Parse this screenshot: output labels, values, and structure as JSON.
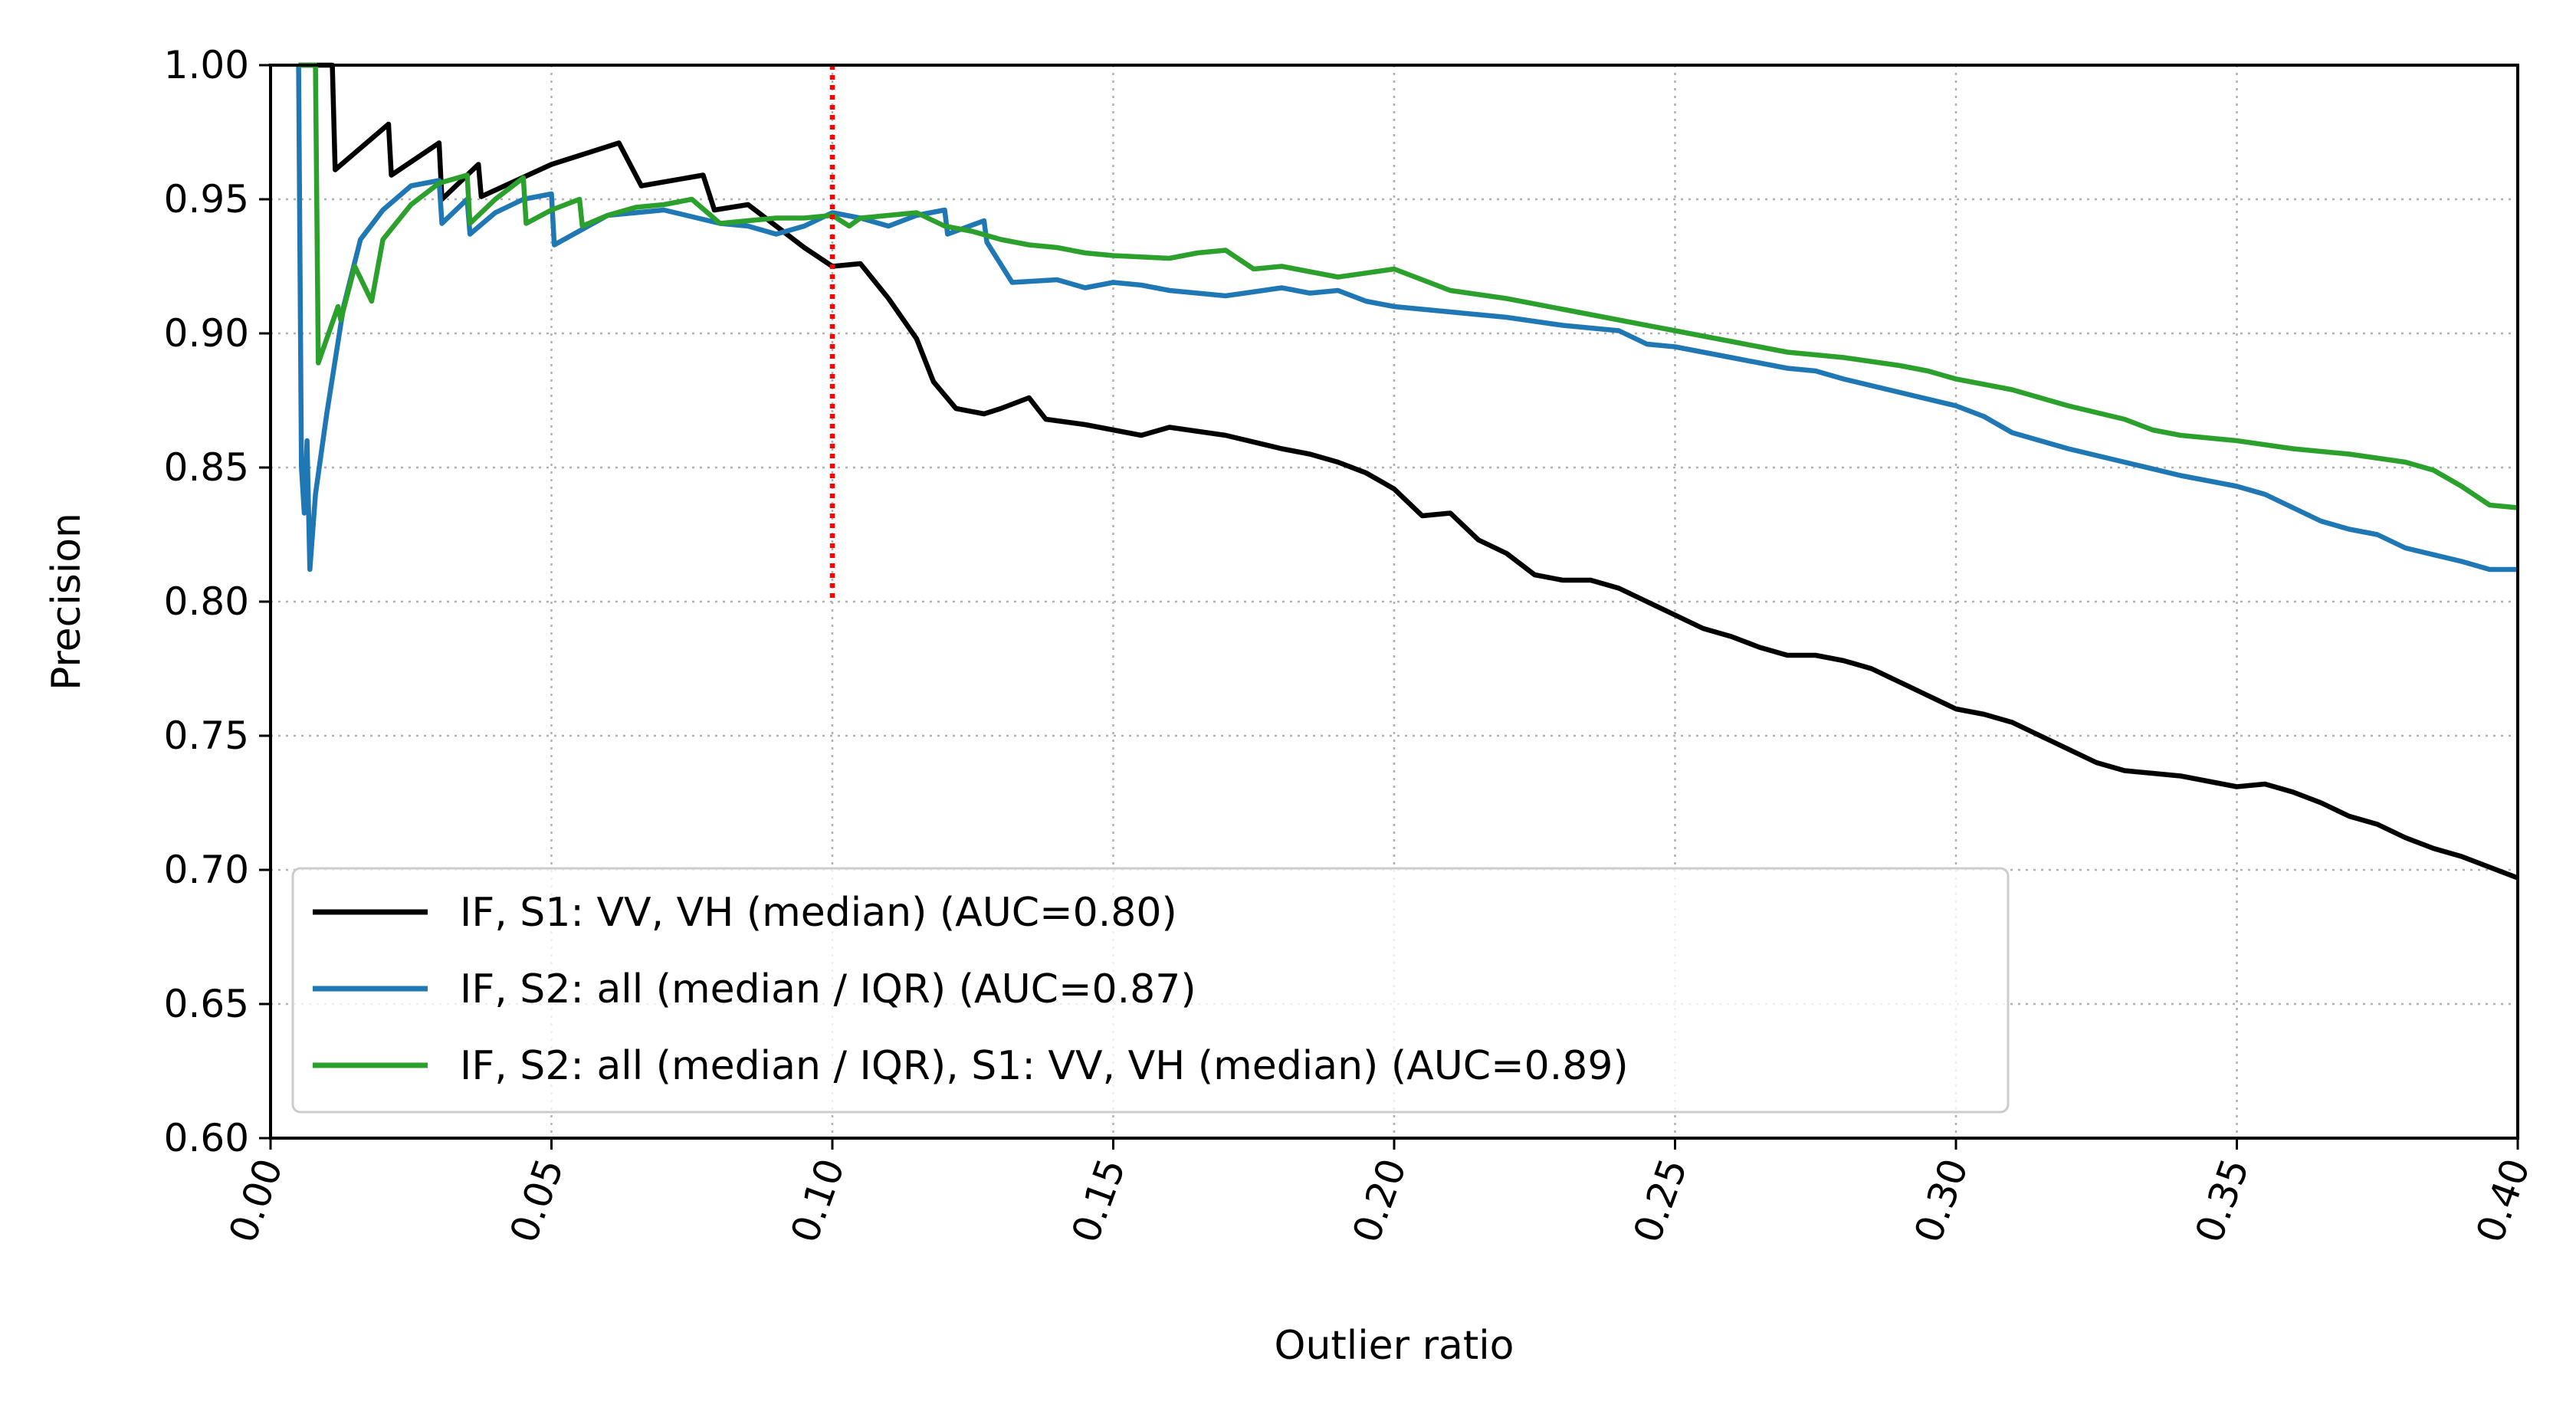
{
  "chart_data": {
    "type": "line",
    "title": "",
    "xlabel": "Outlier ratio",
    "ylabel": "Precision",
    "xlim": [
      0,
      0.4
    ],
    "ylim": [
      0.6,
      1.0
    ],
    "grid": true,
    "legend_position": "bottom-left",
    "x_ticks": [
      "0.00",
      "0.05",
      "0.10",
      "0.15",
      "0.20",
      "0.25",
      "0.30",
      "0.35",
      "0.40"
    ],
    "y_ticks": [
      "0.60",
      "0.65",
      "0.70",
      "0.75",
      "0.80",
      "0.85",
      "0.90",
      "0.95",
      "1.00"
    ],
    "reference_line": {
      "x": 0.1,
      "y_from": 0.8,
      "y_to": 1.0,
      "color": "#ff0000",
      "style": "dotted"
    },
    "series": [
      {
        "name": "IF, S1: VV, VH (median) (AUC=0.80)",
        "color": "#000000",
        "points": [
          [
            0.005,
            1.0
          ],
          [
            0.011,
            1.0
          ],
          [
            0.0115,
            0.961
          ],
          [
            0.021,
            0.978
          ],
          [
            0.0215,
            0.959
          ],
          [
            0.03,
            0.971
          ],
          [
            0.0305,
            0.95
          ],
          [
            0.037,
            0.963
          ],
          [
            0.0375,
            0.951
          ],
          [
            0.05,
            0.963
          ],
          [
            0.062,
            0.971
          ],
          [
            0.066,
            0.955
          ],
          [
            0.077,
            0.959
          ],
          [
            0.079,
            0.946
          ],
          [
            0.085,
            0.948
          ],
          [
            0.09,
            0.94
          ],
          [
            0.095,
            0.932
          ],
          [
            0.1,
            0.925
          ],
          [
            0.105,
            0.926
          ],
          [
            0.11,
            0.913
          ],
          [
            0.115,
            0.898
          ],
          [
            0.118,
            0.882
          ],
          [
            0.122,
            0.872
          ],
          [
            0.127,
            0.87
          ],
          [
            0.13,
            0.872
          ],
          [
            0.135,
            0.876
          ],
          [
            0.138,
            0.868
          ],
          [
            0.145,
            0.866
          ],
          [
            0.15,
            0.864
          ],
          [
            0.155,
            0.862
          ],
          [
            0.16,
            0.865
          ],
          [
            0.17,
            0.862
          ],
          [
            0.18,
            0.857
          ],
          [
            0.185,
            0.855
          ],
          [
            0.19,
            0.852
          ],
          [
            0.195,
            0.848
          ],
          [
            0.2,
            0.842
          ],
          [
            0.205,
            0.832
          ],
          [
            0.21,
            0.833
          ],
          [
            0.215,
            0.823
          ],
          [
            0.22,
            0.818
          ],
          [
            0.225,
            0.81
          ],
          [
            0.23,
            0.808
          ],
          [
            0.235,
            0.808
          ],
          [
            0.24,
            0.805
          ],
          [
            0.245,
            0.8
          ],
          [
            0.25,
            0.795
          ],
          [
            0.255,
            0.79
          ],
          [
            0.26,
            0.787
          ],
          [
            0.265,
            0.783
          ],
          [
            0.27,
            0.78
          ],
          [
            0.275,
            0.78
          ],
          [
            0.28,
            0.778
          ],
          [
            0.285,
            0.775
          ],
          [
            0.29,
            0.77
          ],
          [
            0.295,
            0.765
          ],
          [
            0.3,
            0.76
          ],
          [
            0.305,
            0.758
          ],
          [
            0.31,
            0.755
          ],
          [
            0.315,
            0.75
          ],
          [
            0.32,
            0.745
          ],
          [
            0.325,
            0.74
          ],
          [
            0.33,
            0.737
          ],
          [
            0.335,
            0.736
          ],
          [
            0.34,
            0.735
          ],
          [
            0.345,
            0.733
          ],
          [
            0.35,
            0.731
          ],
          [
            0.355,
            0.732
          ],
          [
            0.36,
            0.729
          ],
          [
            0.365,
            0.725
          ],
          [
            0.37,
            0.72
          ],
          [
            0.375,
            0.717
          ],
          [
            0.38,
            0.712
          ],
          [
            0.385,
            0.708
          ],
          [
            0.39,
            0.705
          ],
          [
            0.395,
            0.701
          ],
          [
            0.4,
            0.697
          ]
        ]
      },
      {
        "name": "IF, S2: all (median / IQR) (AUC=0.87)",
        "color": "#1f77b4",
        "points": [
          [
            0.005,
            1.0
          ],
          [
            0.0055,
            0.85
          ],
          [
            0.006,
            0.833
          ],
          [
            0.0065,
            0.86
          ],
          [
            0.007,
            0.812
          ],
          [
            0.008,
            0.84
          ],
          [
            0.01,
            0.87
          ],
          [
            0.013,
            0.91
          ],
          [
            0.016,
            0.935
          ],
          [
            0.02,
            0.946
          ],
          [
            0.025,
            0.955
          ],
          [
            0.03,
            0.957
          ],
          [
            0.0305,
            0.941
          ],
          [
            0.035,
            0.95
          ],
          [
            0.0355,
            0.937
          ],
          [
            0.04,
            0.945
          ],
          [
            0.045,
            0.95
          ],
          [
            0.05,
            0.952
          ],
          [
            0.0505,
            0.933
          ],
          [
            0.06,
            0.944
          ],
          [
            0.07,
            0.946
          ],
          [
            0.08,
            0.941
          ],
          [
            0.085,
            0.94
          ],
          [
            0.09,
            0.937
          ],
          [
            0.095,
            0.94
          ],
          [
            0.1,
            0.945
          ],
          [
            0.105,
            0.943
          ],
          [
            0.11,
            0.94
          ],
          [
            0.115,
            0.944
          ],
          [
            0.12,
            0.946
          ],
          [
            0.1205,
            0.937
          ],
          [
            0.127,
            0.942
          ],
          [
            0.1275,
            0.934
          ],
          [
            0.132,
            0.919
          ],
          [
            0.14,
            0.92
          ],
          [
            0.145,
            0.917
          ],
          [
            0.15,
            0.919
          ],
          [
            0.155,
            0.918
          ],
          [
            0.16,
            0.916
          ],
          [
            0.17,
            0.914
          ],
          [
            0.18,
            0.917
          ],
          [
            0.185,
            0.915
          ],
          [
            0.19,
            0.916
          ],
          [
            0.195,
            0.912
          ],
          [
            0.2,
            0.91
          ],
          [
            0.21,
            0.908
          ],
          [
            0.22,
            0.906
          ],
          [
            0.23,
            0.903
          ],
          [
            0.24,
            0.901
          ],
          [
            0.245,
            0.896
          ],
          [
            0.25,
            0.895
          ],
          [
            0.255,
            0.893
          ],
          [
            0.26,
            0.891
          ],
          [
            0.27,
            0.887
          ],
          [
            0.275,
            0.886
          ],
          [
            0.28,
            0.883
          ],
          [
            0.29,
            0.878
          ],
          [
            0.3,
            0.873
          ],
          [
            0.305,
            0.869
          ],
          [
            0.31,
            0.863
          ],
          [
            0.32,
            0.857
          ],
          [
            0.33,
            0.852
          ],
          [
            0.34,
            0.847
          ],
          [
            0.35,
            0.843
          ],
          [
            0.355,
            0.84
          ],
          [
            0.36,
            0.835
          ],
          [
            0.365,
            0.83
          ],
          [
            0.37,
            0.827
          ],
          [
            0.375,
            0.825
          ],
          [
            0.38,
            0.82
          ],
          [
            0.39,
            0.815
          ],
          [
            0.395,
            0.812
          ],
          [
            0.4,
            0.812
          ]
        ]
      },
      {
        "name": "IF, S2: all (median / IQR), S1: VV, VH (median) (AUC=0.89)",
        "color": "#2ca02c",
        "points": [
          [
            0.005,
            1.0
          ],
          [
            0.008,
            1.0
          ],
          [
            0.0085,
            0.889
          ],
          [
            0.012,
            0.91
          ],
          [
            0.0125,
            0.905
          ],
          [
            0.015,
            0.925
          ],
          [
            0.018,
            0.912
          ],
          [
            0.02,
            0.935
          ],
          [
            0.025,
            0.948
          ],
          [
            0.03,
            0.956
          ],
          [
            0.035,
            0.959
          ],
          [
            0.0355,
            0.941
          ],
          [
            0.04,
            0.95
          ],
          [
            0.045,
            0.958
          ],
          [
            0.0455,
            0.941
          ],
          [
            0.05,
            0.946
          ],
          [
            0.055,
            0.95
          ],
          [
            0.0555,
            0.94
          ],
          [
            0.06,
            0.944
          ],
          [
            0.065,
            0.947
          ],
          [
            0.07,
            0.948
          ],
          [
            0.075,
            0.95
          ],
          [
            0.08,
            0.941
          ],
          [
            0.085,
            0.942
          ],
          [
            0.09,
            0.943
          ],
          [
            0.095,
            0.943
          ],
          [
            0.1,
            0.944
          ],
          [
            0.103,
            0.94
          ],
          [
            0.105,
            0.943
          ],
          [
            0.11,
            0.944
          ],
          [
            0.115,
            0.945
          ],
          [
            0.12,
            0.94
          ],
          [
            0.125,
            0.938
          ],
          [
            0.13,
            0.935
          ],
          [
            0.135,
            0.933
          ],
          [
            0.14,
            0.932
          ],
          [
            0.145,
            0.93
          ],
          [
            0.15,
            0.929
          ],
          [
            0.16,
            0.928
          ],
          [
            0.165,
            0.93
          ],
          [
            0.17,
            0.931
          ],
          [
            0.175,
            0.924
          ],
          [
            0.18,
            0.925
          ],
          [
            0.19,
            0.921
          ],
          [
            0.2,
            0.924
          ],
          [
            0.21,
            0.916
          ],
          [
            0.22,
            0.913
          ],
          [
            0.23,
            0.909
          ],
          [
            0.24,
            0.905
          ],
          [
            0.25,
            0.901
          ],
          [
            0.255,
            0.899
          ],
          [
            0.26,
            0.897
          ],
          [
            0.265,
            0.895
          ],
          [
            0.27,
            0.893
          ],
          [
            0.28,
            0.891
          ],
          [
            0.29,
            0.888
          ],
          [
            0.295,
            0.886
          ],
          [
            0.3,
            0.883
          ],
          [
            0.31,
            0.879
          ],
          [
            0.32,
            0.873
          ],
          [
            0.33,
            0.868
          ],
          [
            0.335,
            0.864
          ],
          [
            0.34,
            0.862
          ],
          [
            0.35,
            0.86
          ],
          [
            0.36,
            0.857
          ],
          [
            0.37,
            0.855
          ],
          [
            0.38,
            0.852
          ],
          [
            0.385,
            0.849
          ],
          [
            0.39,
            0.843
          ],
          [
            0.395,
            0.836
          ],
          [
            0.4,
            0.835
          ]
        ]
      }
    ]
  }
}
